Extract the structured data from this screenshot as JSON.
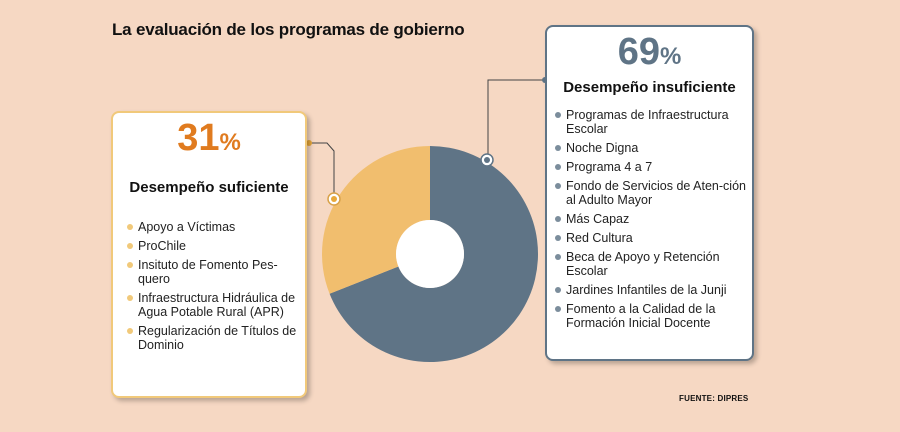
{
  "title": "La evaluación de los programas de gobierno",
  "source": "FUENTE: DIPRES",
  "colors": {
    "suficiente": "#f1be6e",
    "insuficiente": "#5f7486",
    "suficiente_accent": "#e07b1f",
    "background": "#f6d8c3"
  },
  "chart_data": {
    "type": "pie",
    "title": "La evaluación de los programas de gobierno",
    "series": [
      {
        "name": "Desempeño suficiente",
        "value": 31,
        "color": "#f1be6e",
        "programs": [
          "Apoyo a Víctimas",
          "ProChile",
          "Insituto de Fomento Pes-quero",
          "Infraestructura Hidráulica de Agua Potable Rural (APR)",
          "Regularización de Títulos de Dominio"
        ]
      },
      {
        "name": "Desempeño insuficiente",
        "value": 69,
        "color": "#5f7486",
        "programs": [
          "Programas de Infraestructura Escolar",
          "Noche Digna",
          "Programa 4 a 7",
          "Fondo de Servicios de Aten-ción al Adulto Mayor",
          "Más Capaz",
          "Red Cultura",
          "Beca de Apoyo y Retención Escolar",
          "Jardines Infantiles de la Junji",
          "Fomento a la Calidad de la Formación Inicial Docente"
        ]
      }
    ]
  },
  "left_box": {
    "pct_number": "31",
    "pct_symbol": "%",
    "heading": "Desempeño suficiente",
    "items": [
      "Apoyo a Víctimas",
      "ProChile",
      "Insituto de Fomento Pes-quero",
      "Infraestructura Hidráulica de Agua Potable Rural (APR)",
      "Regularización de Títulos de Dominio"
    ]
  },
  "right_box": {
    "pct_number": "69",
    "pct_symbol": "%",
    "heading": "Desempeño insuficiente",
    "items": [
      "Programas de Infraestructura Escolar",
      "Noche Digna",
      "Programa 4 a 7",
      "Fondo de Servicios de Aten-ción al Adulto Mayor",
      "Más Capaz",
      "Red Cultura",
      "Beca de Apoyo y Retención Escolar",
      "Jardines Infantiles de la Junji",
      "Fomento a la Calidad de la Formación Inicial Docente"
    ]
  }
}
